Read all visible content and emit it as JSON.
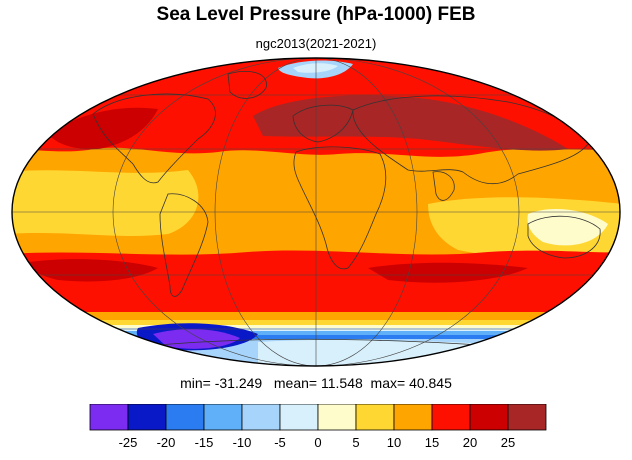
{
  "title": "Sea Level Pressure (hPa-1000) FEB",
  "subtitle": "ngc2013(2021-2021)",
  "stats": {
    "min_label": "min=",
    "min_value": "-31.249",
    "mean_label": "mean=",
    "mean_value": "11.548",
    "max_label": "max=",
    "max_value": "40.845"
  },
  "projection": "Mollweide (global)",
  "colorbar": {
    "colors": [
      "#7b2cf0",
      "#0a19c8",
      "#2a7cf0",
      "#5fb0f8",
      "#a6d4fa",
      "#d8f0fc",
      "#fffccc",
      "#ffd733",
      "#ffa500",
      "#fe1000",
      "#cc0000",
      "#a82626"
    ],
    "tick_labels": [
      "-25",
      "-20",
      "-15",
      "-10",
      "-5",
      "0",
      "5",
      "10",
      "15",
      "20",
      "25"
    ]
  },
  "colors": {
    "ocean_base": "#ffa500",
    "continent_lines": "#333333",
    "graticule": "#444444"
  }
}
